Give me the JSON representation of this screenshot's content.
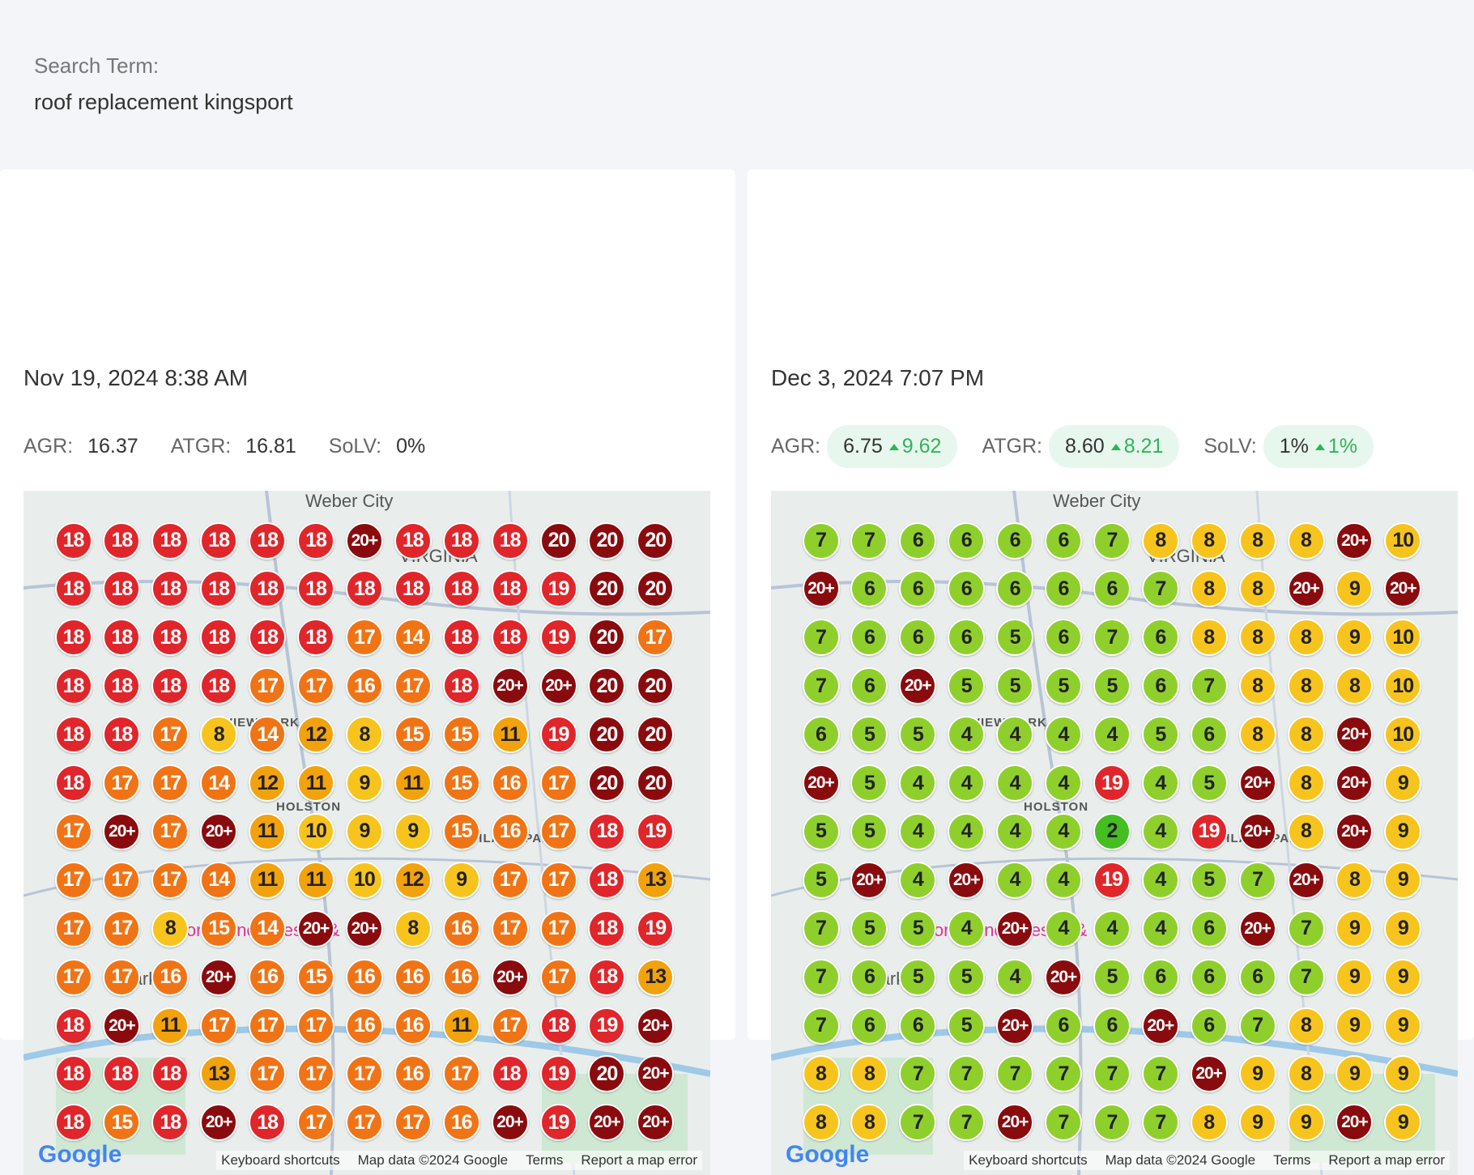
{
  "search": {
    "label": "Search Term:",
    "term": "roof replacement kingsport"
  },
  "reports": [
    {
      "date": "Nov 19, 2024 8:38 AM",
      "stats": [
        {
          "label": "AGR:",
          "value": "16.37"
        },
        {
          "label": "ATGR:",
          "value": "16.81"
        },
        {
          "label": "SoLV:",
          "value": "0%"
        }
      ],
      "grid": [
        [
          "18",
          "18",
          "18",
          "18",
          "18",
          "18",
          "20+",
          "18",
          "18",
          "18",
          "20",
          "20",
          "20"
        ],
        [
          "18",
          "18",
          "18",
          "18",
          "18",
          "18",
          "18",
          "18",
          "18",
          "18",
          "19",
          "20",
          "20"
        ],
        [
          "18",
          "18",
          "18",
          "18",
          "18",
          "18",
          "17",
          "14",
          "18",
          "18",
          "19",
          "20",
          "17"
        ],
        [
          "18",
          "18",
          "18",
          "18",
          "17",
          "17",
          "16",
          "17",
          "18",
          "20+",
          "20+",
          "20",
          "20"
        ],
        [
          "18",
          "18",
          "17",
          "8",
          "14",
          "12",
          "8",
          "15",
          "15",
          "11",
          "19",
          "20",
          "20"
        ],
        [
          "18",
          "17",
          "17",
          "14",
          "12",
          "11",
          "9",
          "11",
          "15",
          "16",
          "17",
          "20",
          "20"
        ],
        [
          "17",
          "20+",
          "17",
          "20+",
          "11",
          "10",
          "9",
          "9",
          "15",
          "16",
          "17",
          "18",
          "19"
        ],
        [
          "17",
          "17",
          "17",
          "14",
          "11",
          "11",
          "10",
          "12",
          "9",
          "17",
          "17",
          "18",
          "13"
        ],
        [
          "17",
          "17",
          "8",
          "15",
          "14",
          "20+",
          "20+",
          "8",
          "16",
          "17",
          "17",
          "18",
          "19"
        ],
        [
          "17",
          "17",
          "16",
          "20+",
          "16",
          "15",
          "16",
          "16",
          "16",
          "20+",
          "17",
          "18",
          "13"
        ],
        [
          "18",
          "20+",
          "11",
          "17",
          "17",
          "17",
          "16",
          "16",
          "11",
          "17",
          "18",
          "19",
          "20+"
        ],
        [
          "18",
          "18",
          "18",
          "13",
          "17",
          "17",
          "17",
          "16",
          "17",
          "18",
          "19",
          "20",
          "20+"
        ],
        [
          "18",
          "15",
          "18",
          "20+",
          "18",
          "17",
          "17",
          "17",
          "16",
          "20+",
          "19",
          "20+",
          "20+"
        ]
      ],
      "map_labels": [
        "Weber City",
        "VIRGINIA",
        "VIEW PARK",
        "HOLSTON",
        "HIGHLAND PARK",
        "Conference Resort &",
        "Park &"
      ],
      "map_brand": "Google",
      "map_footer": [
        "Keyboard shortcuts",
        "Map data ©2024 Google",
        "Terms",
        "Report a map error"
      ]
    },
    {
      "date": "Dec 3, 2024 7:07 PM",
      "stats": [
        {
          "label": "AGR:",
          "value": "6.75",
          "change": "9.62"
        },
        {
          "label": "ATGR:",
          "value": "8.60",
          "change": "8.21"
        },
        {
          "label": "SoLV:",
          "value": "1%",
          "change": "1%"
        }
      ],
      "grid": [
        [
          "7",
          "7",
          "6",
          "6",
          "6",
          "6",
          "7",
          "8",
          "8",
          "8",
          "8",
          "20+",
          "10"
        ],
        [
          "20+",
          "6",
          "6",
          "6",
          "6",
          "6",
          "6",
          "7",
          "8",
          "8",
          "20+",
          "9",
          "20+"
        ],
        [
          "7",
          "6",
          "6",
          "6",
          "5",
          "6",
          "7",
          "6",
          "8",
          "8",
          "8",
          "9",
          "10"
        ],
        [
          "7",
          "6",
          "20+",
          "5",
          "5",
          "5",
          "5",
          "6",
          "7",
          "8",
          "8",
          "8",
          "10"
        ],
        [
          "6",
          "5",
          "5",
          "4",
          "4",
          "4",
          "4",
          "5",
          "6",
          "8",
          "8",
          "20+",
          "10"
        ],
        [
          "20+",
          "5",
          "4",
          "4",
          "4",
          "4",
          "19",
          "4",
          "5",
          "20+",
          "8",
          "20+",
          "9"
        ],
        [
          "5",
          "5",
          "4",
          "4",
          "4",
          "4",
          "2",
          "4",
          "19",
          "20+",
          "8",
          "20+",
          "9"
        ],
        [
          "5",
          "20+",
          "4",
          "20+",
          "4",
          "4",
          "19",
          "4",
          "5",
          "7",
          "20+",
          "8",
          "9"
        ],
        [
          "7",
          "5",
          "5",
          "4",
          "20+",
          "4",
          "4",
          "4",
          "6",
          "20+",
          "7",
          "9",
          "9"
        ],
        [
          "7",
          "6",
          "5",
          "5",
          "4",
          "20+",
          "5",
          "6",
          "6",
          "6",
          "7",
          "9",
          "9"
        ],
        [
          "7",
          "6",
          "6",
          "5",
          "20+",
          "6",
          "6",
          "20+",
          "6",
          "7",
          "8",
          "9",
          "9"
        ],
        [
          "8",
          "8",
          "7",
          "7",
          "7",
          "7",
          "7",
          "7",
          "20+",
          "9",
          "8",
          "9",
          "9"
        ],
        [
          "8",
          "8",
          "7",
          "7",
          "20+",
          "7",
          "7",
          "7",
          "8",
          "9",
          "9",
          "20+",
          "9"
        ]
      ],
      "map_labels": [
        "Weber City",
        "VIRGINIA",
        "VIEW PARK",
        "HOLSTON",
        "HIGHLAND PARK",
        "Conference Resort &",
        "Park &"
      ],
      "map_brand": "Google",
      "map_footer": [
        "Keyboard shortcuts",
        "Map data ©2024 Google",
        "Terms",
        "Report a map error"
      ]
    }
  ]
}
